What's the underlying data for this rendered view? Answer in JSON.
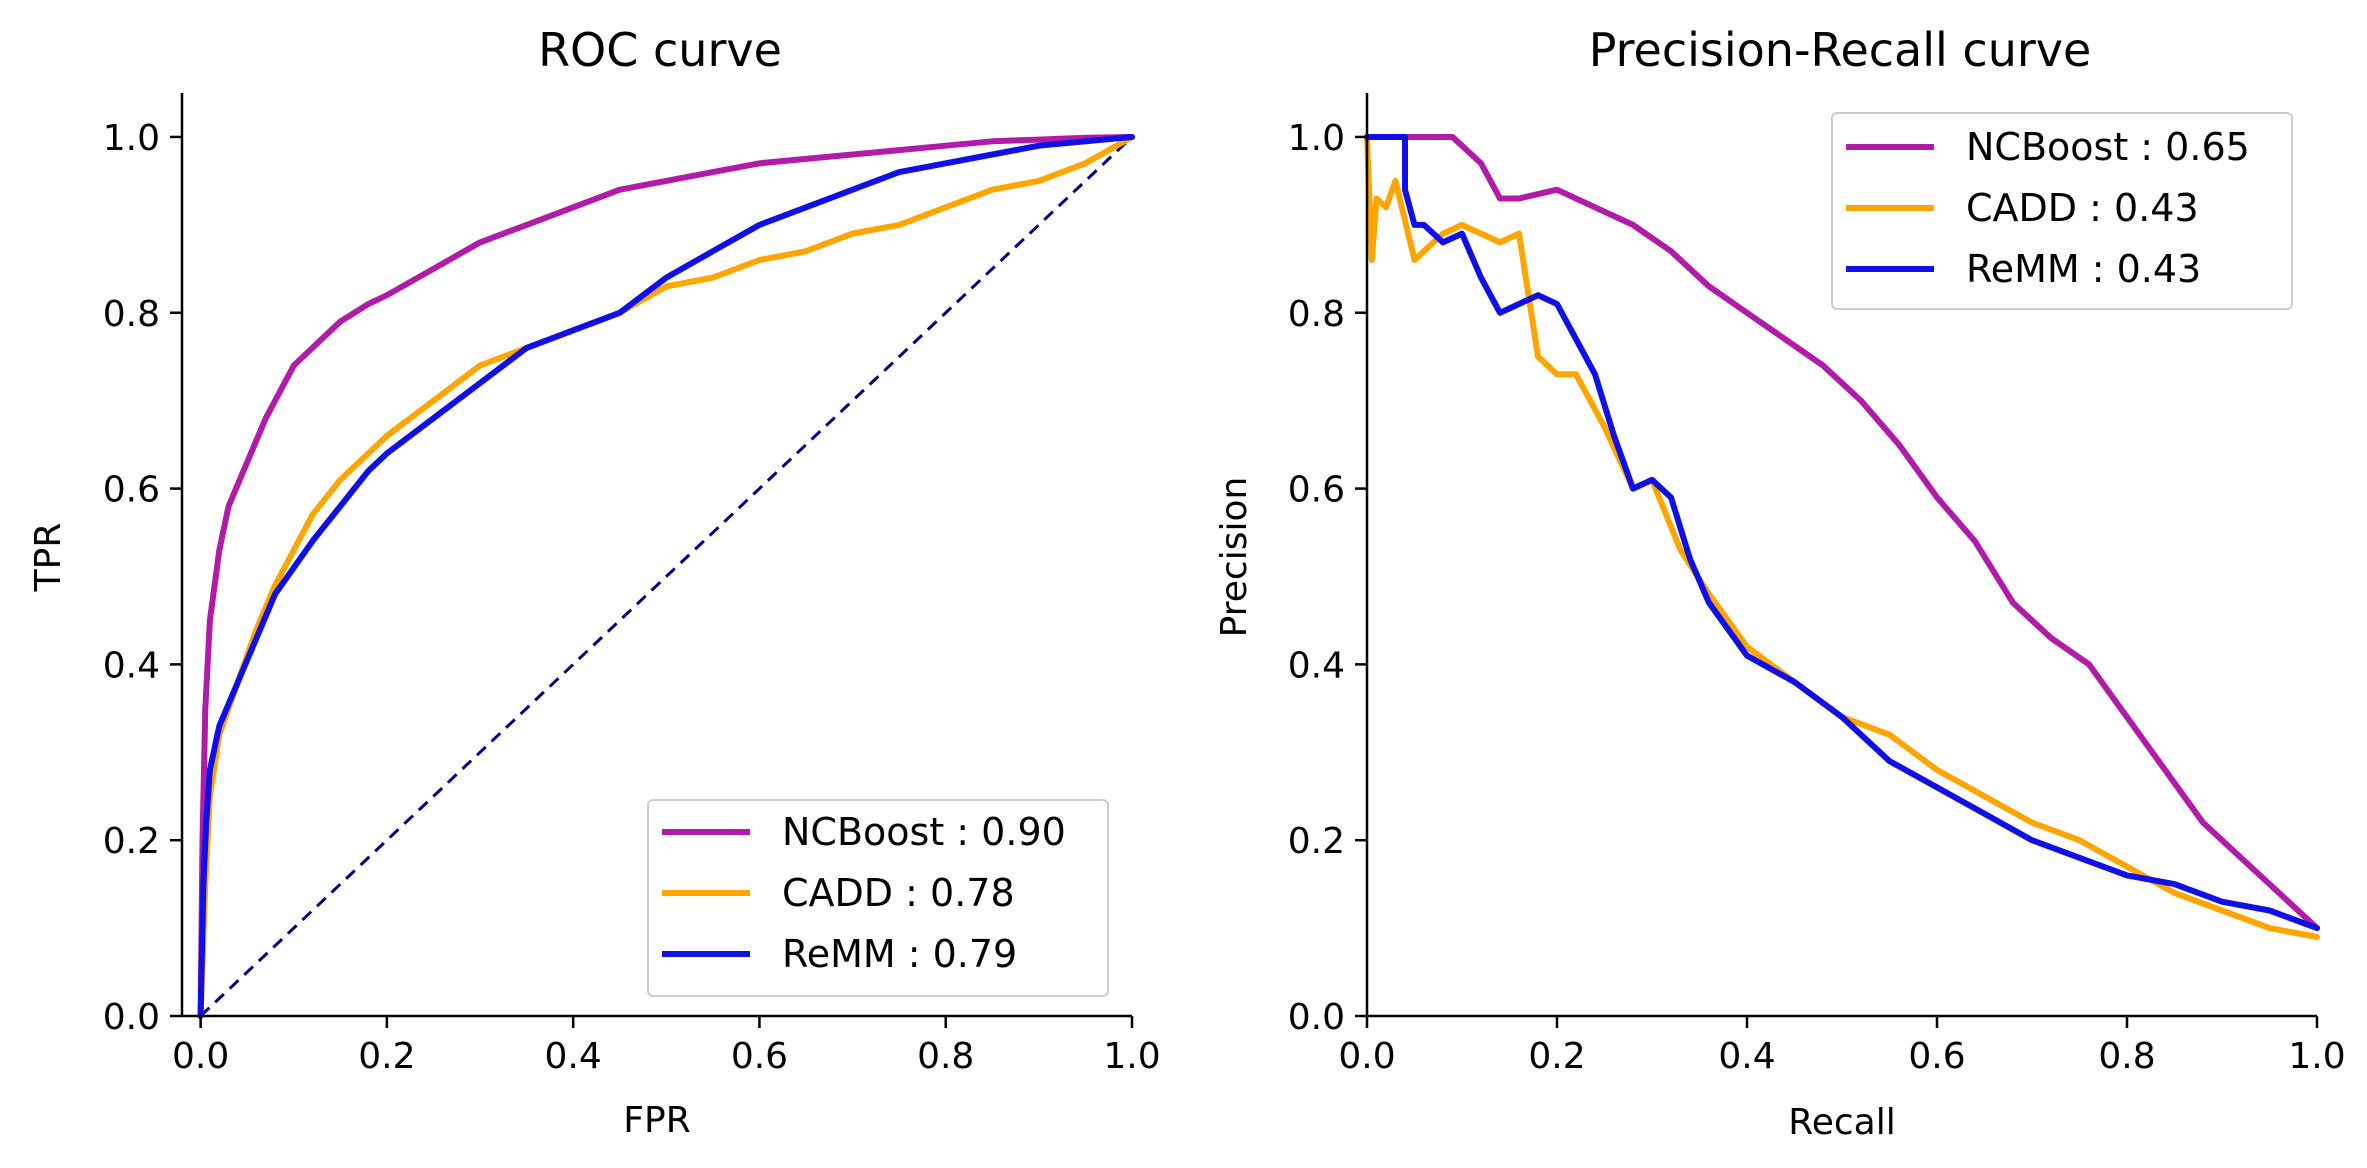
{
  "chart_data": [
    {
      "type": "line",
      "title": "ROC curve",
      "xlabel": "FPR",
      "ylabel": "TPR",
      "xlim": [
        -0.02,
        1.0
      ],
      "ylim": [
        0.0,
        1.05
      ],
      "xticks": [
        "0.0",
        "0.2",
        "0.4",
        "0.6",
        "0.8",
        "1.0"
      ],
      "yticks": [
        "0.0",
        "0.2",
        "0.4",
        "0.6",
        "0.8",
        "1.0"
      ],
      "grid": false,
      "legend_position": "lower-right",
      "reference_line": {
        "x": [
          0,
          1
        ],
        "y": [
          0,
          1
        ],
        "color": "#000080",
        "style": "dashed"
      },
      "series": [
        {
          "name": "NCBoost : 0.90",
          "color": "#b01ba8",
          "x": [
            0,
            0.002,
            0.005,
            0.01,
            0.02,
            0.03,
            0.05,
            0.07,
            0.1,
            0.13,
            0.15,
            0.18,
            0.2,
            0.25,
            0.3,
            0.35,
            0.4,
            0.45,
            0.5,
            0.55,
            0.6,
            0.65,
            0.7,
            0.75,
            0.8,
            0.85,
            0.9,
            0.95,
            1.0
          ],
          "y": [
            0,
            0.2,
            0.35,
            0.45,
            0.53,
            0.58,
            0.63,
            0.68,
            0.74,
            0.77,
            0.79,
            0.81,
            0.82,
            0.85,
            0.88,
            0.9,
            0.92,
            0.94,
            0.95,
            0.96,
            0.97,
            0.975,
            0.98,
            0.985,
            0.99,
            0.995,
            0.997,
            0.999,
            1.0
          ]
        },
        {
          "name": "CADD : 0.78",
          "color": "#ffa500",
          "x": [
            0,
            0.005,
            0.01,
            0.02,
            0.04,
            0.06,
            0.08,
            0.1,
            0.12,
            0.15,
            0.18,
            0.2,
            0.25,
            0.3,
            0.35,
            0.4,
            0.45,
            0.5,
            0.55,
            0.6,
            0.65,
            0.7,
            0.75,
            0.8,
            0.85,
            0.9,
            0.95,
            1.0
          ],
          "y": [
            0,
            0.15,
            0.25,
            0.32,
            0.38,
            0.44,
            0.49,
            0.53,
            0.57,
            0.61,
            0.64,
            0.66,
            0.7,
            0.74,
            0.76,
            0.78,
            0.8,
            0.83,
            0.84,
            0.86,
            0.87,
            0.89,
            0.9,
            0.92,
            0.94,
            0.95,
            0.97,
            1.0
          ]
        },
        {
          "name": "ReMM : 0.79",
          "color": "#0f0fe6",
          "x": [
            0,
            0.003,
            0.006,
            0.01,
            0.02,
            0.04,
            0.06,
            0.08,
            0.1,
            0.12,
            0.15,
            0.18,
            0.2,
            0.25,
            0.3,
            0.35,
            0.4,
            0.45,
            0.5,
            0.55,
            0.6,
            0.65,
            0.7,
            0.75,
            0.8,
            0.85,
            0.9,
            0.95,
            1.0
          ],
          "y": [
            0,
            0.15,
            0.22,
            0.28,
            0.33,
            0.38,
            0.43,
            0.48,
            0.51,
            0.54,
            0.58,
            0.62,
            0.64,
            0.68,
            0.72,
            0.76,
            0.78,
            0.8,
            0.84,
            0.87,
            0.9,
            0.92,
            0.94,
            0.96,
            0.97,
            0.98,
            0.99,
            0.995,
            1.0
          ]
        }
      ]
    },
    {
      "type": "line",
      "title": "Precision-Recall curve",
      "xlabel": "Recall",
      "ylabel": "Precision",
      "xlim": [
        0.0,
        1.0
      ],
      "ylim": [
        0.0,
        1.05
      ],
      "xticks": [
        "0.0",
        "0.2",
        "0.4",
        "0.6",
        "0.8",
        "1.0"
      ],
      "yticks": [
        "0.0",
        "0.2",
        "0.4",
        "0.6",
        "0.8",
        "1.0"
      ],
      "grid": false,
      "legend_position": "upper-right",
      "series": [
        {
          "name": "NCBoost : 0.65",
          "color": "#b01ba8",
          "x": [
            0.0,
            0.05,
            0.09,
            0.1,
            0.12,
            0.14,
            0.16,
            0.2,
            0.24,
            0.28,
            0.32,
            0.36,
            0.4,
            0.44,
            0.48,
            0.52,
            0.56,
            0.6,
            0.64,
            0.68,
            0.72,
            0.76,
            0.8,
            0.84,
            0.88,
            0.92,
            0.96,
            1.0
          ],
          "y": [
            1.0,
            1.0,
            1.0,
            0.99,
            0.97,
            0.93,
            0.93,
            0.94,
            0.92,
            0.9,
            0.87,
            0.83,
            0.8,
            0.77,
            0.74,
            0.7,
            0.65,
            0.59,
            0.54,
            0.47,
            0.43,
            0.4,
            0.34,
            0.28,
            0.22,
            0.18,
            0.14,
            0.1
          ]
        },
        {
          "name": "CADD : 0.43",
          "color": "#ffa500",
          "x": [
            0.0,
            0.005,
            0.01,
            0.02,
            0.03,
            0.05,
            0.08,
            0.1,
            0.12,
            0.14,
            0.16,
            0.18,
            0.2,
            0.22,
            0.25,
            0.28,
            0.3,
            0.33,
            0.36,
            0.4,
            0.45,
            0.5,
            0.55,
            0.6,
            0.65,
            0.7,
            0.75,
            0.8,
            0.85,
            0.9,
            0.95,
            1.0
          ],
          "y": [
            1.0,
            0.86,
            0.93,
            0.92,
            0.95,
            0.86,
            0.89,
            0.9,
            0.89,
            0.88,
            0.89,
            0.75,
            0.73,
            0.73,
            0.67,
            0.6,
            0.61,
            0.53,
            0.48,
            0.42,
            0.38,
            0.34,
            0.32,
            0.28,
            0.25,
            0.22,
            0.2,
            0.17,
            0.14,
            0.12,
            0.1,
            0.09
          ]
        },
        {
          "name": "ReMM : 0.43",
          "color": "#0f0fe6",
          "x": [
            0.0,
            0.04,
            0.04,
            0.05,
            0.06,
            0.08,
            0.1,
            0.12,
            0.14,
            0.16,
            0.18,
            0.2,
            0.22,
            0.24,
            0.26,
            0.28,
            0.3,
            0.32,
            0.34,
            0.36,
            0.38,
            0.4,
            0.45,
            0.5,
            0.55,
            0.6,
            0.65,
            0.7,
            0.75,
            0.8,
            0.85,
            0.9,
            0.95,
            1.0
          ],
          "y": [
            1.0,
            1.0,
            0.94,
            0.9,
            0.9,
            0.88,
            0.89,
            0.84,
            0.8,
            0.81,
            0.82,
            0.81,
            0.77,
            0.73,
            0.66,
            0.6,
            0.61,
            0.59,
            0.52,
            0.47,
            0.44,
            0.41,
            0.38,
            0.34,
            0.29,
            0.26,
            0.23,
            0.2,
            0.18,
            0.16,
            0.15,
            0.13,
            0.12,
            0.1
          ]
        }
      ]
    }
  ]
}
